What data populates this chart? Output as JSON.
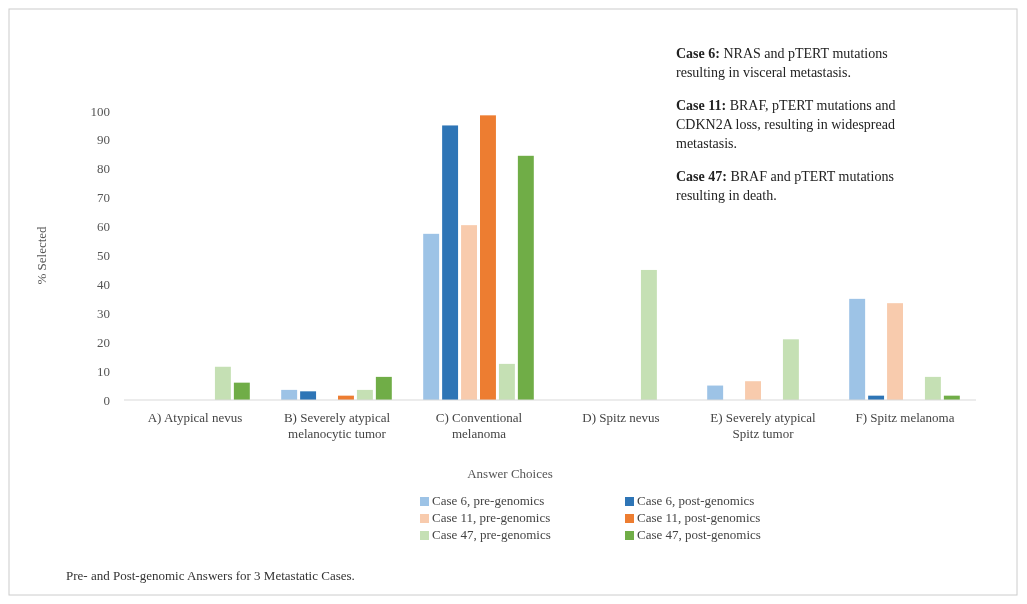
{
  "chart_data": {
    "type": "bar",
    "title": "Pre- and Post-genomic Answers for 3 Metastatic Cases.",
    "xlabel": "Answer Choices",
    "ylabel": "% Selected",
    "categories": [
      "A) Atypical nevus",
      "B) Severely atypical melanocytic tumor",
      "C) Conventional melanoma",
      "D) Spitz nevus",
      "E) Severely atypical Spitz tumor",
      "F) Spitz melanoma"
    ],
    "series": [
      {
        "name": "Case 6, pre-genomics",
        "color": "#9dc3e6",
        "values": [
          0,
          3.5,
          57.5,
          0,
          5,
          35
        ]
      },
      {
        "name": "Case 6, post-genomics",
        "color": "#2e75b6",
        "values": [
          0,
          3,
          95,
          0,
          0,
          1.5
        ]
      },
      {
        "name": "Case 11, pre-genomics",
        "color": "#f8cbad",
        "values": [
          0,
          0,
          60.5,
          0,
          6.5,
          33.5
        ]
      },
      {
        "name": "Case 11, post-genomics",
        "color": "#ed7d31",
        "values": [
          0,
          1.5,
          98.5,
          0,
          0,
          0
        ]
      },
      {
        "name": "Case 47, pre-genomics",
        "color": "#c5e0b4",
        "values": [
          11.5,
          3.5,
          12.5,
          45,
          21,
          8
        ]
      },
      {
        "name": "Case 47, post-genomics",
        "color": "#70ad47",
        "values": [
          6,
          8,
          84.5,
          0,
          0,
          1.5
        ]
      }
    ],
    "ylim": [
      0,
      100
    ],
    "yticks": [
      0,
      10,
      20,
      30,
      40,
      50,
      60,
      70,
      80,
      90,
      100
    ],
    "grid": false,
    "legend": "bottom",
    "annotations": [
      "Case 6: NRAS and pTERT mutations resulting in visceral metastasis.",
      "Case 11: BRAF, pTERT mutations and CDKN2A loss, resulting in widespread metastasis.",
      "Case 47: BRAF and pTERT mutations resulting in death."
    ]
  }
}
